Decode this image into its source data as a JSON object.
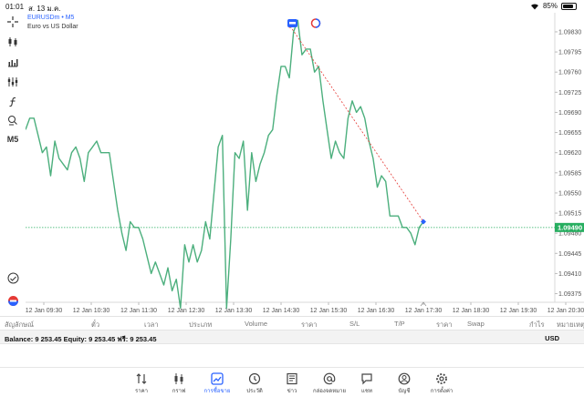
{
  "status_bar": {
    "time": "01:01",
    "date": "ส. 13 ม.ค.",
    "battery": "85%",
    "battery_level": 0.85
  },
  "symbol": {
    "name": "EURUSDm • M5",
    "description": "Euro vs US Dollar",
    "timeframe": "M5"
  },
  "toolbar": {
    "tools": [
      "crosshair-icon",
      "candle-type-icon",
      "indicators-icon",
      "objects-icon",
      "function-icon",
      "template-icon",
      "timeframe"
    ]
  },
  "chart_data": {
    "type": "line",
    "ylim": [
      1.0936,
      1.0986
    ],
    "current_price": "1.09490",
    "y_ticks": [
      "1.09830",
      "1.09795",
      "1.09760",
      "1.09725",
      "1.09690",
      "1.09655",
      "1.09620",
      "1.09585",
      "1.09550",
      "1.09515",
      "1.09480",
      "1.09445",
      "1.09410",
      "1.09375"
    ],
    "y_tick_values": [
      1.0983,
      1.09795,
      1.0976,
      1.09725,
      1.0969,
      1.09655,
      1.0962,
      1.09585,
      1.0955,
      1.09515,
      1.0948,
      1.09445,
      1.0941,
      1.09375
    ],
    "x_ticks": [
      "12 Jan 09:30",
      "12 Jan 10:30",
      "12 Jan 11:30",
      "12 Jan 12:30",
      "12 Jan 13:30",
      "12 Jan 14:30",
      "12 Jan 15:30",
      "12 Jan 16:30",
      "12 Jan 17:30",
      "12 Jan 18:30",
      "12 Jan 19:30",
      "12 Jan 20:30"
    ],
    "series": [
      {
        "values": [
          1.0966,
          1.0968,
          1.0968,
          1.0965,
          1.0962,
          1.0963,
          1.0958,
          1.0964,
          1.0961,
          1.096,
          1.0959,
          1.0962,
          1.0963,
          1.0961,
          1.0957,
          1.0962,
          1.0963,
          1.0964,
          1.0962,
          1.0962,
          1.0962,
          1.0957,
          1.0952,
          1.0948,
          1.0945,
          1.095,
          1.0949,
          1.0949,
          1.0947,
          1.0944,
          1.0941,
          1.0943,
          1.0941,
          1.0939,
          1.0942,
          1.0938,
          1.094,
          1.0935,
          1.0946,
          1.0943,
          1.0946,
          1.0943,
          1.0945,
          1.095,
          1.0947,
          1.0955,
          1.0963,
          1.0965,
          1.0935,
          1.0947,
          1.0962,
          1.0961,
          1.0964,
          1.0952,
          1.0962,
          1.0957,
          1.096,
          1.0962,
          1.0965,
          1.0966,
          1.0972,
          1.0977,
          1.0977,
          1.0975,
          1.0983,
          1.0985,
          1.0979,
          1.098,
          1.098,
          1.0976,
          1.0977,
          1.0971,
          1.0966,
          1.0961,
          1.0964,
          1.0962,
          1.0961,
          1.0968,
          1.0971,
          1.0969,
          1.097,
          1.0968,
          1.0964,
          1.0961,
          1.0956,
          1.0958,
          1.0957,
          1.0951,
          1.0951,
          1.0951,
          1.0949,
          1.0949,
          1.0948,
          1.0946,
          1.0949,
          1.095
        ]
      }
    ],
    "trade_line": {
      "open": 1.0984,
      "close": 1.095
    }
  },
  "columns": [
    "สัญลักษณ์",
    "ตั๋ว",
    "เวลา",
    "ประเภท",
    "Volume",
    "ราคา",
    "S/L",
    "T/P",
    "ราคา",
    "Swap",
    "กำไร",
    "หมายเหตุ"
  ],
  "balance": {
    "text": "Balance: 9 253.45 Equity: 9 253.45 ฟรี: 9 253.45",
    "currency": "USD"
  },
  "nav": [
    {
      "label": "ราคา",
      "icon": "quotes-icon",
      "active": false
    },
    {
      "label": "กราฟ",
      "icon": "chart-icon",
      "active": false
    },
    {
      "label": "การซื้อขาย",
      "icon": "trade-icon",
      "active": true
    },
    {
      "label": "ประวัติ",
      "icon": "history-icon",
      "active": false
    },
    {
      "label": "ข่าว",
      "icon": "news-icon",
      "active": false
    },
    {
      "label": "กล่องจดหมาย",
      "icon": "mailbox-icon",
      "active": false
    },
    {
      "label": "แชท",
      "icon": "chat-icon",
      "active": false
    },
    {
      "label": "บัญชี",
      "icon": "account-icon",
      "active": false
    },
    {
      "label": "การตั้งค่า",
      "icon": "settings-icon",
      "active": false
    }
  ],
  "colors": {
    "line": "#4caf7d",
    "price_line": "#27ae60",
    "accent": "#2962ff",
    "trade_open": "#e53935"
  }
}
